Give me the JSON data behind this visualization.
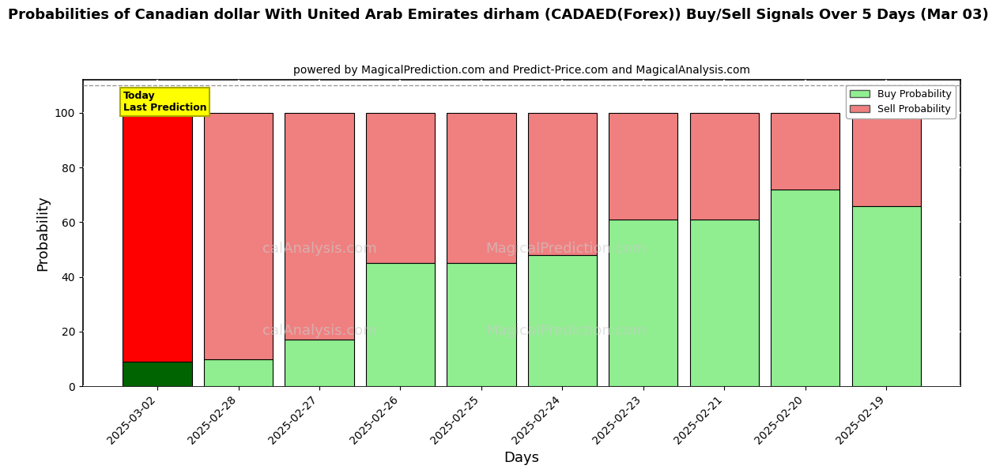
{
  "title": "Probabilities of Canadian dollar With United Arab Emirates dirham (CADAED(Forex)) Buy/Sell Signals Over 5 Days (Mar 03)",
  "subtitle": "powered by MagicalPrediction.com and Predict-Price.com and MagicalAnalysis.com",
  "xlabel": "Days",
  "ylabel": "Probability",
  "categories": [
    "2025-03-02",
    "2025-02-28",
    "2025-02-27",
    "2025-02-26",
    "2025-02-25",
    "2025-02-24",
    "2025-02-23",
    "2025-02-21",
    "2025-02-20",
    "2025-02-19"
  ],
  "buy_values": [
    9,
    10,
    17,
    45,
    45,
    48,
    61,
    61,
    72,
    66
  ],
  "sell_values": [
    91,
    90,
    83,
    55,
    55,
    52,
    39,
    39,
    28,
    34
  ],
  "today_buy_color": "#006400",
  "today_sell_color": "#ff0000",
  "buy_color": "#90EE90",
  "sell_color": "#f08080",
  "today_label_bg": "#ffff00",
  "today_label_text": "Today\nLast Prediction",
  "legend_buy": "Buy Probability",
  "legend_sell": "Sell Probability",
  "ylim": [
    0,
    112
  ],
  "yticks": [
    0,
    20,
    40,
    60,
    80,
    100
  ],
  "watermark_left": "calAnalysis.com",
  "watermark_mid": "MagicalPrediction.com",
  "watermark_right": "MagicalPrediction.com",
  "background_color": "#ffffff",
  "plot_bg_color": "#ffffff",
  "grid_color": "#ffffff",
  "bar_edge_color": "#000000",
  "title_fontsize": 13,
  "subtitle_fontsize": 10,
  "axis_label_fontsize": 13,
  "bar_width": 0.85
}
